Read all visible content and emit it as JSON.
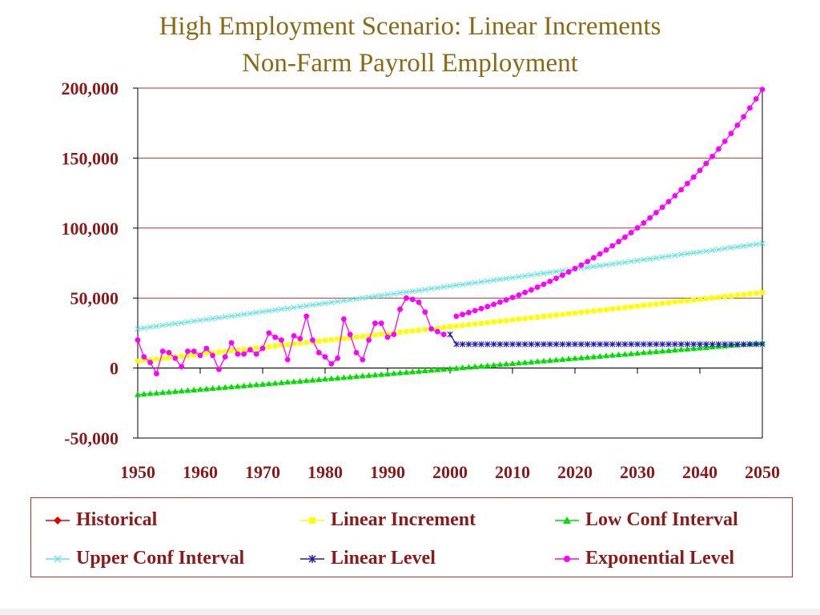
{
  "chart_data": {
    "type": "line",
    "title": "High Employment Scenario: Linear Increments",
    "subtitle": "Non-Farm Payroll Employment",
    "xlabel": "",
    "ylabel": "",
    "xlim": [
      1950,
      2050
    ],
    "ylim": [
      -50000,
      200000
    ],
    "x_ticks": [
      "1950",
      "1960",
      "1970",
      "1980",
      "1990",
      "2000",
      "2010",
      "2020",
      "2030",
      "2040",
      "2050"
    ],
    "y_ticks": [
      "200,000",
      "150,000",
      "100,000",
      "50,000",
      "0",
      "-50,000"
    ],
    "y_tick_values": [
      200000,
      150000,
      100000,
      50000,
      0,
      -50000
    ],
    "grid": "horizontal",
    "legend_position": "bottom",
    "series": [
      {
        "name": "Historical",
        "color": "#dd0000",
        "marker": "diamond",
        "x": [
          1950,
          1951,
          1952,
          1953,
          1954,
          1955,
          1956,
          1957,
          1958,
          1959,
          1960,
          1961,
          1962,
          1963,
          1964,
          1965,
          1966,
          1967,
          1968,
          1969,
          1970,
          1971,
          1972,
          1973,
          1974,
          1975,
          1976,
          1977,
          1978,
          1979,
          1980,
          1981,
          1982,
          1983,
          1984,
          1985,
          1986,
          1987,
          1988,
          1989,
          1990,
          1991,
          1992,
          1993,
          1994,
          1995,
          1996,
          1997,
          1998,
          1999,
          2000
        ],
        "values": [
          20000,
          8000,
          4000,
          -4000,
          12000,
          11000,
          7000,
          1000,
          12000,
          12000,
          9000,
          14000,
          9000,
          -1000,
          8000,
          18000,
          10000,
          10000,
          13000,
          10000,
          14000,
          25000,
          22000,
          20000,
          6000,
          23000,
          21000,
          37000,
          20000,
          11000,
          8000,
          3000,
          7000,
          35000,
          24000,
          11000,
          6000,
          20000,
          32000,
          32000,
          22000,
          24000,
          42000,
          50000,
          49000,
          47000,
          40000,
          28000,
          26000,
          24000,
          null
        ]
      },
      {
        "name": "Linear Increment",
        "color": "#ffff00",
        "marker": "square",
        "start": [
          1950,
          5000
        ],
        "end": [
          2050,
          54000
        ]
      },
      {
        "name": "Low Conf Interval",
        "color": "#00dd00",
        "marker": "triangle",
        "start": [
          1950,
          -19000
        ],
        "end": [
          2050,
          18000
        ]
      },
      {
        "name": "Upper Conf Interval",
        "color": "#66e6e6",
        "marker": "x",
        "start": [
          1950,
          28000
        ],
        "end": [
          2050,
          89000
        ]
      },
      {
        "name": "Linear Level",
        "color": "#1a1ab3",
        "marker": "asterisk",
        "start": [
          2001,
          17000
        ],
        "end": [
          2050,
          17000
        ]
      },
      {
        "name": "Exponential Level",
        "color": "#ff00ff",
        "marker": "circle",
        "x_overlay": [
          1950,
          1951,
          1952,
          1953,
          1954,
          1955,
          1956,
          1957,
          1958,
          1959,
          1960,
          1961,
          1962,
          1963,
          1964,
          1965,
          1966,
          1967,
          1968,
          1969,
          1970,
          1971,
          1972,
          1973,
          1974,
          1975,
          1976,
          1977,
          1978,
          1979,
          1980,
          1981,
          1982,
          1983,
          1984,
          1985,
          1986,
          1987,
          1988,
          1989,
          1990,
          1991,
          1992,
          1993,
          1994,
          1995,
          1996,
          1997,
          1998,
          1999,
          2000
        ],
        "exp_start": [
          2001,
          37000
        ],
        "exp_end": [
          2050,
          199000
        ]
      }
    ]
  },
  "legend": [
    {
      "label": "Historical",
      "color": "#dd0000",
      "marker": "diamond"
    },
    {
      "label": "Linear Increment",
      "color": "#ffff00",
      "marker": "square"
    },
    {
      "label": "Low Conf Interval",
      "color": "#00dd00",
      "marker": "triangle"
    },
    {
      "label": "Upper Conf Interval",
      "color": "#66e6e6",
      "marker": "x"
    },
    {
      "label": "Linear Level",
      "color": "#1a1ab3",
      "marker": "asterisk"
    },
    {
      "label": "Exponential Level",
      "color": "#ff00ff",
      "marker": "circle"
    }
  ],
  "colors": {
    "title": "#8b6914",
    "tick_text": "#8b1a1a",
    "gridline": "#b5342a",
    "axis": "#000000"
  }
}
